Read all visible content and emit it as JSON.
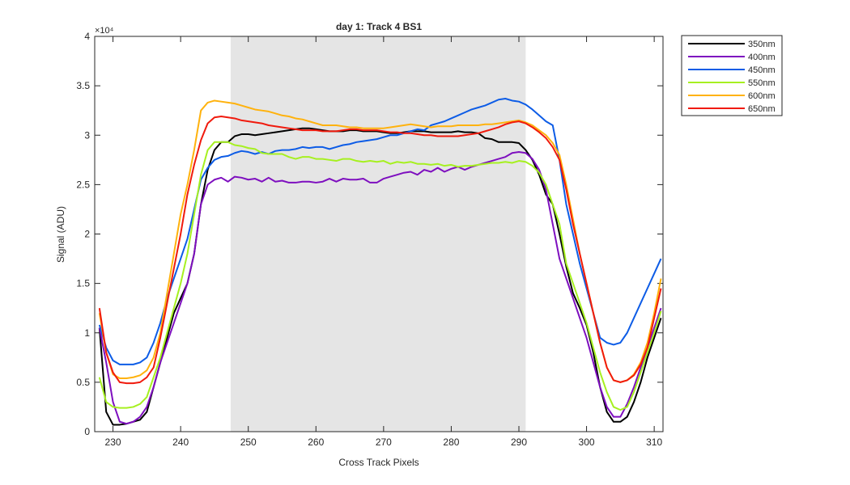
{
  "chart_data": {
    "type": "line",
    "title": "day 1: Track 4  BS1",
    "xlabel": "Cross Track Pixels",
    "ylabel": "Signal (ADU)",
    "y_exponent_label": "×10⁴",
    "shaded_region": [
      247.4,
      291
    ],
    "shaded_color": "#e5e5e5",
    "legend": "northeastoutside",
    "xlim": [
      227.3,
      311.3
    ],
    "ylim": [
      0,
      4
    ],
    "xticks": [
      230,
      240,
      250,
      260,
      270,
      280,
      290,
      300,
      310
    ],
    "yticks": [
      0,
      0.5,
      1,
      1.5,
      2,
      2.5,
      3,
      3.5,
      4
    ],
    "x": [
      228,
      229,
      230,
      231,
      232,
      233,
      234,
      235,
      236,
      237,
      238,
      239,
      240,
      241,
      242,
      243,
      244,
      245,
      246,
      247,
      248,
      249,
      250,
      251,
      252,
      253,
      254,
      255,
      256,
      257,
      258,
      259,
      260,
      261,
      262,
      263,
      264,
      265,
      266,
      267,
      268,
      269,
      270,
      271,
      272,
      273,
      274,
      275,
      276,
      277,
      278,
      279,
      280,
      281,
      282,
      283,
      284,
      285,
      286,
      287,
      288,
      289,
      290,
      291,
      292,
      293,
      294,
      295,
      296,
      297,
      298,
      299,
      300,
      301,
      302,
      303,
      304,
      305,
      306,
      307,
      308,
      309,
      310,
      311
    ],
    "series": [
      {
        "name": "350nm",
        "color": "#000000",
        "values": [
          1.05,
          0.2,
          0.07,
          0.07,
          0.08,
          0.1,
          0.12,
          0.2,
          0.45,
          0.7,
          0.95,
          1.2,
          1.35,
          1.5,
          1.8,
          2.3,
          2.65,
          2.85,
          2.93,
          2.93,
          2.99,
          3.01,
          3.01,
          3.0,
          3.01,
          3.02,
          3.03,
          3.04,
          3.05,
          3.06,
          3.07,
          3.07,
          3.06,
          3.05,
          3.04,
          3.04,
          3.04,
          3.05,
          3.05,
          3.04,
          3.04,
          3.04,
          3.03,
          3.02,
          3.02,
          3.03,
          3.04,
          3.04,
          3.04,
          3.03,
          3.03,
          3.03,
          3.03,
          3.04,
          3.03,
          3.03,
          3.02,
          2.97,
          2.96,
          2.93,
          2.93,
          2.93,
          2.92,
          2.85,
          2.75,
          2.6,
          2.4,
          2.3,
          2.0,
          1.67,
          1.4,
          1.25,
          1.08,
          0.8,
          0.45,
          0.2,
          0.1,
          0.1,
          0.15,
          0.3,
          0.5,
          0.75,
          0.95,
          1.15
        ]
      },
      {
        "name": "400nm",
        "color": "#7e0fbf",
        "values": [
          1.05,
          0.7,
          0.3,
          0.1,
          0.08,
          0.1,
          0.15,
          0.25,
          0.45,
          0.7,
          0.9,
          1.1,
          1.3,
          1.5,
          1.8,
          2.3,
          2.5,
          2.55,
          2.57,
          2.53,
          2.58,
          2.57,
          2.55,
          2.56,
          2.53,
          2.57,
          2.53,
          2.54,
          2.52,
          2.52,
          2.53,
          2.53,
          2.52,
          2.53,
          2.56,
          2.53,
          2.56,
          2.55,
          2.55,
          2.56,
          2.52,
          2.52,
          2.56,
          2.58,
          2.6,
          2.62,
          2.63,
          2.6,
          2.65,
          2.63,
          2.67,
          2.63,
          2.66,
          2.68,
          2.65,
          2.68,
          2.7,
          2.72,
          2.74,
          2.76,
          2.78,
          2.82,
          2.83,
          2.82,
          2.76,
          2.65,
          2.45,
          2.1,
          1.75,
          1.55,
          1.35,
          1.15,
          0.95,
          0.7,
          0.45,
          0.25,
          0.15,
          0.15,
          0.28,
          0.45,
          0.65,
          0.85,
          1.05,
          1.25
        ]
      },
      {
        "name": "450nm",
        "color": "#0d5ce6",
        "values": [
          1.08,
          0.85,
          0.72,
          0.68,
          0.68,
          0.68,
          0.7,
          0.75,
          0.9,
          1.1,
          1.35,
          1.55,
          1.75,
          1.95,
          2.25,
          2.55,
          2.67,
          2.75,
          2.78,
          2.79,
          2.82,
          2.84,
          2.83,
          2.81,
          2.83,
          2.81,
          2.84,
          2.85,
          2.85,
          2.86,
          2.88,
          2.87,
          2.88,
          2.88,
          2.86,
          2.88,
          2.9,
          2.91,
          2.93,
          2.94,
          2.95,
          2.96,
          2.98,
          3.0,
          3.0,
          3.02,
          3.04,
          3.06,
          3.05,
          3.1,
          3.12,
          3.14,
          3.17,
          3.2,
          3.23,
          3.26,
          3.28,
          3.3,
          3.33,
          3.36,
          3.37,
          3.35,
          3.34,
          3.31,
          3.26,
          3.2,
          3.14,
          3.1,
          2.75,
          2.3,
          2.0,
          1.7,
          1.45,
          1.2,
          0.95,
          0.9,
          0.88,
          0.9,
          1.0,
          1.15,
          1.3,
          1.45,
          1.6,
          1.75
        ]
      },
      {
        "name": "550nm",
        "color": "#a6f020",
        "values": [
          0.55,
          0.3,
          0.25,
          0.24,
          0.24,
          0.25,
          0.28,
          0.35,
          0.55,
          0.75,
          1.0,
          1.25,
          1.5,
          1.8,
          2.2,
          2.6,
          2.85,
          2.93,
          2.93,
          2.93,
          2.9,
          2.89,
          2.87,
          2.86,
          2.82,
          2.81,
          2.81,
          2.81,
          2.78,
          2.76,
          2.78,
          2.78,
          2.76,
          2.76,
          2.75,
          2.74,
          2.76,
          2.76,
          2.74,
          2.73,
          2.74,
          2.73,
          2.74,
          2.71,
          2.73,
          2.72,
          2.73,
          2.71,
          2.71,
          2.7,
          2.71,
          2.69,
          2.7,
          2.68,
          2.69,
          2.69,
          2.7,
          2.71,
          2.72,
          2.72,
          2.73,
          2.72,
          2.74,
          2.73,
          2.69,
          2.62,
          2.5,
          2.3,
          2.1,
          1.7,
          1.5,
          1.3,
          1.1,
          0.85,
          0.6,
          0.4,
          0.25,
          0.22,
          0.25,
          0.4,
          0.6,
          0.8,
          1.0,
          1.22
        ]
      },
      {
        "name": "600nm",
        "color": "#ffb20d",
        "values": [
          1.2,
          0.8,
          0.58,
          0.54,
          0.54,
          0.55,
          0.57,
          0.62,
          0.75,
          1.0,
          1.4,
          1.8,
          2.2,
          2.5,
          2.85,
          3.25,
          3.33,
          3.35,
          3.34,
          3.33,
          3.32,
          3.3,
          3.28,
          3.26,
          3.25,
          3.24,
          3.22,
          3.2,
          3.19,
          3.17,
          3.16,
          3.14,
          3.12,
          3.1,
          3.1,
          3.1,
          3.09,
          3.08,
          3.08,
          3.07,
          3.07,
          3.07,
          3.07,
          3.08,
          3.09,
          3.1,
          3.11,
          3.1,
          3.09,
          3.08,
          3.09,
          3.09,
          3.09,
          3.1,
          3.1,
          3.1,
          3.1,
          3.11,
          3.11,
          3.12,
          3.13,
          3.14,
          3.15,
          3.13,
          3.1,
          3.05,
          3.0,
          2.92,
          2.8,
          2.5,
          2.15,
          1.8,
          1.5,
          1.2,
          0.9,
          0.65,
          0.52,
          0.5,
          0.52,
          0.58,
          0.7,
          0.9,
          1.2,
          1.55
        ]
      },
      {
        "name": "650nm",
        "color": "#f01a0d",
        "values": [
          1.25,
          0.8,
          0.6,
          0.5,
          0.49,
          0.49,
          0.5,
          0.55,
          0.65,
          0.95,
          1.3,
          1.65,
          2.0,
          2.4,
          2.7,
          2.95,
          3.12,
          3.18,
          3.19,
          3.18,
          3.17,
          3.15,
          3.14,
          3.13,
          3.12,
          3.1,
          3.09,
          3.08,
          3.07,
          3.06,
          3.05,
          3.05,
          3.05,
          3.04,
          3.04,
          3.04,
          3.05,
          3.06,
          3.06,
          3.05,
          3.05,
          3.05,
          3.04,
          3.03,
          3.03,
          3.02,
          3.02,
          3.01,
          3.0,
          3.0,
          2.99,
          2.99,
          2.99,
          2.99,
          3.0,
          3.01,
          3.02,
          3.04,
          3.06,
          3.08,
          3.11,
          3.13,
          3.14,
          3.12,
          3.08,
          3.03,
          2.97,
          2.88,
          2.75,
          2.45,
          2.1,
          1.8,
          1.5,
          1.2,
          0.9,
          0.65,
          0.52,
          0.5,
          0.52,
          0.57,
          0.68,
          0.85,
          1.15,
          1.45
        ]
      }
    ]
  }
}
